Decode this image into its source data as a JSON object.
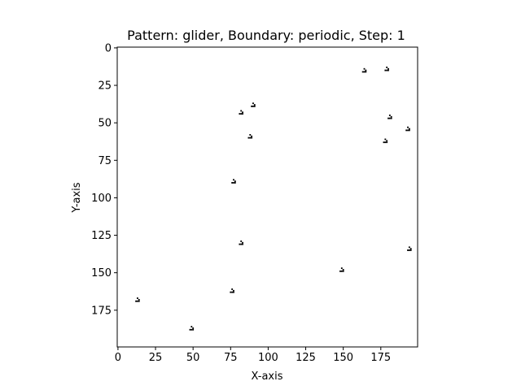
{
  "colors": {
    "background": "#ffffff",
    "cell": "#000000",
    "axis": "#000000"
  },
  "chart_data": {
    "type": "scatter",
    "title": "Pattern: glider, Boundary: periodic, Step: 1",
    "xlabel": "X-axis",
    "ylabel": "Y-axis",
    "xlim": [
      -0.5,
      199.5
    ],
    "ylim": [
      199.5,
      -0.5
    ],
    "y_inverted": true,
    "grid": false,
    "xticks": [
      0,
      25,
      50,
      75,
      100,
      125,
      150,
      175
    ],
    "yticks": [
      0,
      25,
      50,
      75,
      100,
      125,
      150,
      175
    ],
    "glider_cells": [
      [
        1,
        0
      ],
      [
        2,
        1
      ],
      [
        0,
        2
      ],
      [
        1,
        2
      ],
      [
        2,
        2
      ]
    ],
    "gliders": [
      {
        "x": 163,
        "y": 14
      },
      {
        "x": 178,
        "y": 13
      },
      {
        "x": 89,
        "y": 37
      },
      {
        "x": 81,
        "y": 42
      },
      {
        "x": 180,
        "y": 45
      },
      {
        "x": 192,
        "y": 53
      },
      {
        "x": 87,
        "y": 58
      },
      {
        "x": 177,
        "y": 61
      },
      {
        "x": 76,
        "y": 88
      },
      {
        "x": 81,
        "y": 129
      },
      {
        "x": 193,
        "y": 133
      },
      {
        "x": 148,
        "y": 147
      },
      {
        "x": 75,
        "y": 161
      },
      {
        "x": 12,
        "y": 167
      },
      {
        "x": 48,
        "y": 186
      }
    ]
  }
}
